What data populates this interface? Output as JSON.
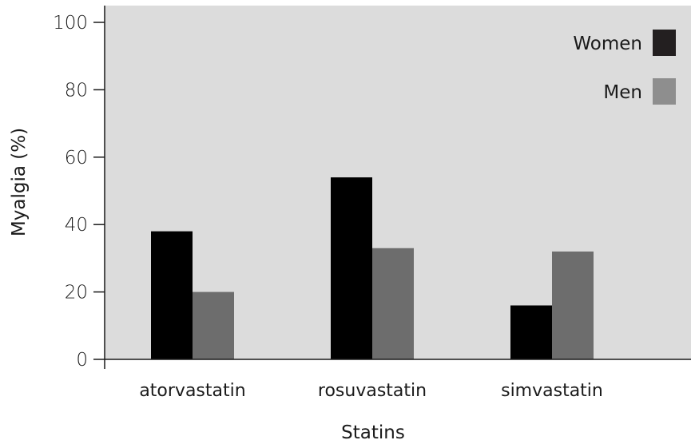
{
  "chart_data": {
    "type": "bar",
    "xlabel": "Statins",
    "ylabel": "Myalgia (%)",
    "categories": [
      "atorvastatin",
      "rosuvastatin",
      "simvastatin"
    ],
    "series": [
      {
        "name": "Women",
        "values": [
          38,
          54,
          16
        ],
        "color": "#000000"
      },
      {
        "name": "Men",
        "values": [
          20,
          33,
          32
        ],
        "color": "#6d6d6d"
      }
    ],
    "legend_colors": {
      "Women": "#231f20",
      "Men": "#8e8e8e"
    },
    "ylim": [
      0,
      100
    ],
    "yticks": [
      "0",
      "20",
      "40",
      "60",
      "80",
      "100"
    ],
    "plot_background": "#dcdcdc",
    "legend_position": "top-right",
    "grid": false
  }
}
